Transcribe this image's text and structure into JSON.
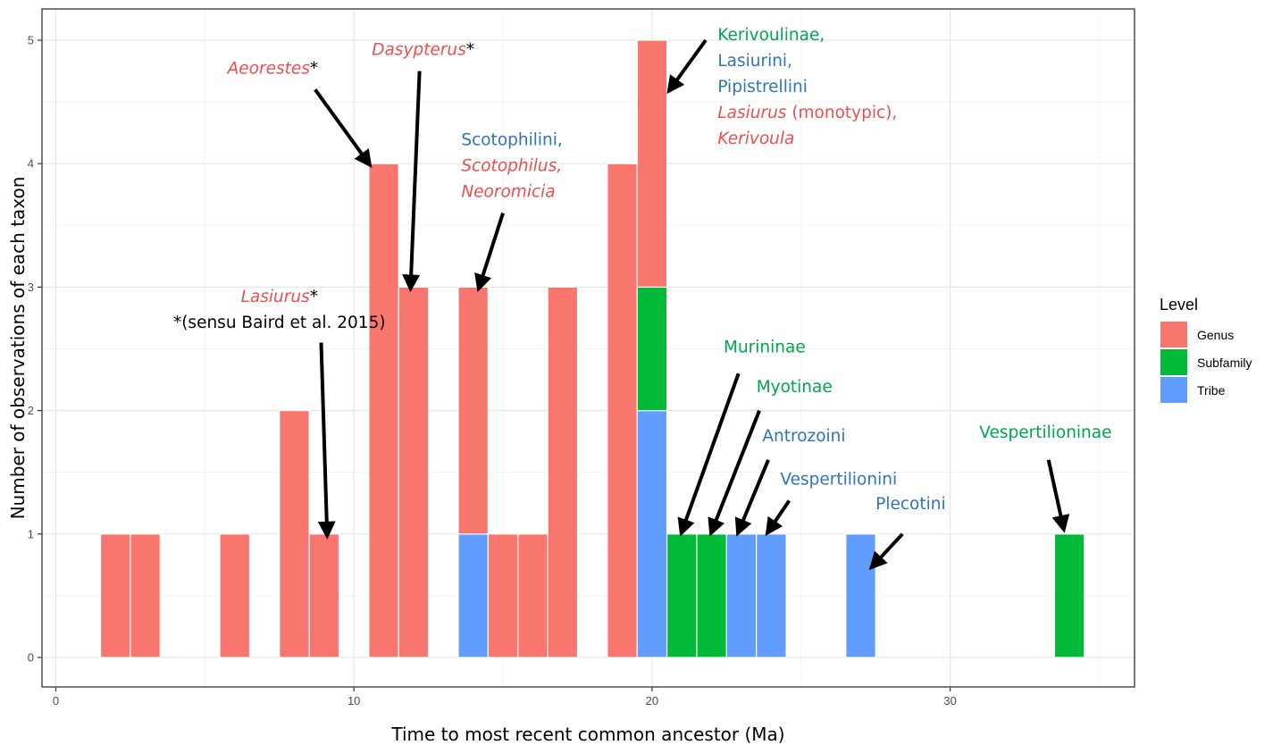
{
  "chart_data": {
    "type": "bar",
    "stacked": true,
    "xlabel": "Time to most recent common ancestor (Ma)",
    "ylabel": "Number of observations of each taxon",
    "xlim": [
      -0.3,
      36.2
    ],
    "ylim": [
      -0.2,
      5.25
    ],
    "x_ticks": [
      0,
      10,
      20,
      30
    ],
    "y_ticks": [
      0,
      1,
      2,
      3,
      4,
      5
    ],
    "bin_width": 1,
    "grid": true,
    "legend": {
      "title": "Level",
      "position": "right",
      "entries": [
        {
          "name": "Genus",
          "color": "#F8766D"
        },
        {
          "name": "Subfamily",
          "color": "#00BA38"
        },
        {
          "name": "Tribe",
          "color": "#619CFF"
        }
      ]
    },
    "bins": [
      {
        "x": 2,
        "Genus": 1,
        "Subfamily": 0,
        "Tribe": 0
      },
      {
        "x": 3,
        "Genus": 1,
        "Subfamily": 0,
        "Tribe": 0
      },
      {
        "x": 6,
        "Genus": 1,
        "Subfamily": 0,
        "Tribe": 0
      },
      {
        "x": 8,
        "Genus": 2,
        "Subfamily": 0,
        "Tribe": 0
      },
      {
        "x": 9,
        "Genus": 1,
        "Subfamily": 0,
        "Tribe": 0
      },
      {
        "x": 11,
        "Genus": 4,
        "Subfamily": 0,
        "Tribe": 0
      },
      {
        "x": 12,
        "Genus": 3,
        "Subfamily": 0,
        "Tribe": 0
      },
      {
        "x": 14,
        "Genus": 2,
        "Subfamily": 0,
        "Tribe": 1
      },
      {
        "x": 15,
        "Genus": 1,
        "Subfamily": 0,
        "Tribe": 0
      },
      {
        "x": 16,
        "Genus": 1,
        "Subfamily": 0,
        "Tribe": 0
      },
      {
        "x": 17,
        "Genus": 3,
        "Subfamily": 0,
        "Tribe": 0
      },
      {
        "x": 19,
        "Genus": 4,
        "Subfamily": 0,
        "Tribe": 0
      },
      {
        "x": 20,
        "Genus": 2,
        "Subfamily": 1,
        "Tribe": 2
      },
      {
        "x": 21,
        "Genus": 0,
        "Subfamily": 1,
        "Tribe": 0
      },
      {
        "x": 22,
        "Genus": 0,
        "Subfamily": 1,
        "Tribe": 0
      },
      {
        "x": 23,
        "Genus": 0,
        "Subfamily": 0,
        "Tribe": 1
      },
      {
        "x": 24,
        "Genus": 0,
        "Subfamily": 0,
        "Tribe": 1
      },
      {
        "x": 27,
        "Genus": 0,
        "Subfamily": 0,
        "Tribe": 1
      },
      {
        "x": 34,
        "Genus": 0,
        "Subfamily": 1,
        "Tribe": 0
      }
    ],
    "annotations": [
      {
        "lines": [
          [
            {
              "t": "Aeorestes",
              "c": "#ED4E4E",
              "i": true
            },
            {
              "t": "*",
              "c": "#000000"
            }
          ]
        ],
        "text": [
          8.8,
          4.73
        ],
        "anchor": "end",
        "arrow": [
          [
            8.7,
            4.6
          ],
          [
            10.5,
            4.0
          ]
        ]
      },
      {
        "lines": [
          [
            {
              "t": "Dasypterus",
              "c": "#ED4E4E",
              "i": true
            },
            {
              "t": "*",
              "c": "#000000"
            }
          ]
        ],
        "text": [
          10.6,
          4.88
        ],
        "anchor": "start",
        "arrow": [
          [
            12.2,
            4.75
          ],
          [
            11.9,
            3.0
          ]
        ]
      },
      {
        "lines": [
          [
            {
              "t": "Lasiurus",
              "c": "#ED4E4E",
              "i": true
            },
            {
              "t": "*",
              "c": "#000000"
            }
          ],
          [
            {
              "t": "*(sensu Baird et al. 2015)",
              "c": "#000000"
            }
          ]
        ],
        "text": [
          7.5,
          2.88
        ],
        "anchor": "middle",
        "arrow": [
          [
            8.9,
            2.55
          ],
          [
            9.1,
            1.0
          ]
        ]
      },
      {
        "lines": [
          [
            {
              "t": "Scotophilini,",
              "c": "#2E75B6"
            }
          ],
          [
            {
              "t": "Scotophilus,",
              "c": "#ED4E4E",
              "i": true
            }
          ],
          [
            {
              "t": "Neoromicia",
              "c": "#ED4E4E",
              "i": true
            }
          ]
        ],
        "text": [
          13.6,
          4.15
        ],
        "anchor": "start",
        "arrow": [
          [
            15.0,
            3.6
          ],
          [
            14.2,
            3.0
          ]
        ]
      },
      {
        "lines": [
          [
            {
              "t": "Kerivoulinae,",
              "c": "#00A550"
            }
          ],
          [
            {
              "t": "Lasiurini,",
              "c": "#2E75B6"
            }
          ],
          [
            {
              "t": "Pipistrellini",
              "c": "#2E75B6"
            }
          ],
          [
            {
              "t": "Lasiurus",
              "c": "#ED4E4E",
              "i": true
            },
            {
              "t": " (monotypic),",
              "c": "#ED4E4E"
            }
          ],
          [
            {
              "t": "Kerivoula",
              "c": "#ED4E4E",
              "i": true
            }
          ]
        ],
        "text": [
          22.2,
          5.0
        ],
        "anchor": "start",
        "arrow": [
          [
            21.8,
            5.0
          ],
          [
            20.6,
            4.6
          ]
        ]
      },
      {
        "lines": [
          [
            {
              "t": "Murininae",
              "c": "#00A550"
            }
          ]
        ],
        "text": [
          22.4,
          2.47
        ],
        "anchor": "start",
        "arrow": [
          [
            22.9,
            2.3
          ],
          [
            21.0,
            1.02
          ]
        ]
      },
      {
        "lines": [
          [
            {
              "t": "Myotinae",
              "c": "#00A550"
            }
          ]
        ],
        "text": [
          23.5,
          2.15
        ],
        "anchor": "start",
        "arrow": [
          [
            23.6,
            2.0
          ],
          [
            22.0,
            1.02
          ]
        ]
      },
      {
        "lines": [
          [
            {
              "t": "Antrozoini",
              "c": "#2E75B6"
            }
          ]
        ],
        "text": [
          23.7,
          1.75
        ],
        "anchor": "start",
        "arrow": [
          [
            23.9,
            1.6
          ],
          [
            22.9,
            1.02
          ]
        ]
      },
      {
        "lines": [
          [
            {
              "t": "Vespertilionini",
              "c": "#2E75B6"
            }
          ]
        ],
        "text": [
          24.3,
          1.4
        ],
        "anchor": "start",
        "arrow": [
          [
            24.6,
            1.27
          ],
          [
            23.9,
            1.02
          ]
        ]
      },
      {
        "lines": [
          [
            {
              "t": "Plecotini",
              "c": "#2E75B6"
            }
          ]
        ],
        "text": [
          27.5,
          1.2
        ],
        "anchor": "start",
        "arrow": [
          [
            28.4,
            1.0
          ],
          [
            27.4,
            0.74
          ]
        ]
      },
      {
        "lines": [
          [
            {
              "t": "Vespertilioninae",
              "c": "#00A550"
            }
          ]
        ],
        "text": [
          33.2,
          1.78
        ],
        "anchor": "middle",
        "arrow": [
          [
            33.3,
            1.6
          ],
          [
            33.8,
            1.05
          ]
        ]
      }
    ]
  }
}
